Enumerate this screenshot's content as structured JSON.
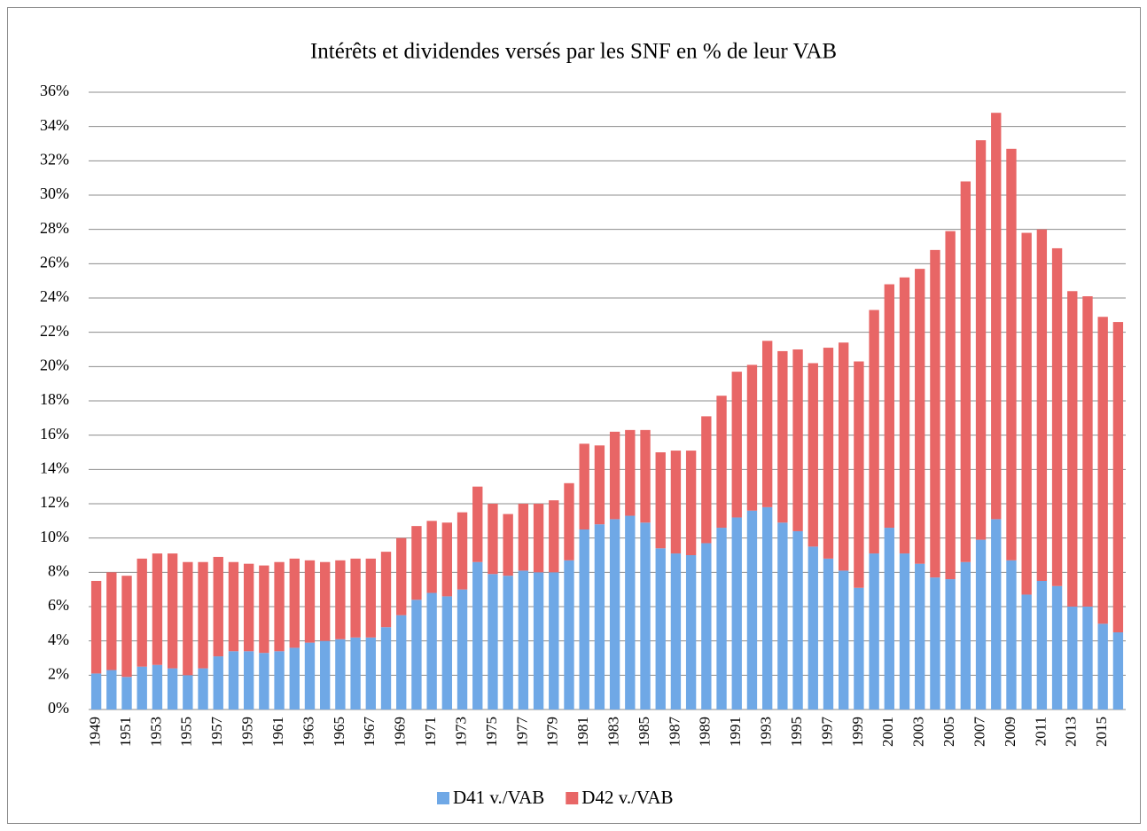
{
  "chart_data": {
    "type": "stacked-bar",
    "title": "Intérêts et dividendes versés par les SNF en % de leur VAB",
    "categories": [
      "1949",
      null,
      "1951",
      null,
      "1953",
      null,
      "1955",
      null,
      "1957",
      null,
      "1959",
      null,
      "1961",
      null,
      "1963",
      null,
      "1965",
      null,
      "1967",
      null,
      "1969",
      null,
      "1971",
      null,
      "1973",
      null,
      "1975",
      null,
      "1977",
      null,
      "1979",
      null,
      "1981",
      null,
      "1983",
      null,
      "1985",
      null,
      "1987",
      null,
      "1989",
      null,
      "1991",
      null,
      "1993",
      null,
      "1995",
      null,
      "1997",
      null,
      "1999",
      null,
      "2001",
      null,
      "2003",
      null,
      "2005",
      null,
      "2007",
      null,
      "2009",
      null,
      "2011",
      null,
      "2013",
      null,
      "2015",
      null
    ],
    "series": [
      {
        "name": "D41 v./VAB",
        "color": "#6fa8e6",
        "values": [
          2.1,
          2.3,
          1.9,
          2.5,
          2.6,
          2.4,
          2.0,
          2.4,
          3.1,
          3.4,
          3.4,
          3.3,
          3.4,
          3.6,
          3.9,
          4.0,
          4.1,
          4.2,
          4.2,
          4.8,
          5.5,
          6.4,
          6.8,
          6.6,
          7.0,
          8.6,
          7.9,
          7.8,
          8.1,
          8.0,
          8.0,
          8.7,
          10.5,
          10.8,
          11.1,
          11.3,
          10.9,
          9.4,
          9.1,
          9.0,
          9.7,
          10.6,
          11.2,
          11.6,
          11.8,
          10.9,
          10.4,
          9.5,
          8.8,
          8.1,
          7.1,
          9.1,
          10.6,
          9.1,
          8.5,
          7.7,
          7.6,
          8.6,
          9.9,
          11.1,
          8.7,
          6.7,
          7.5,
          7.2,
          6.0,
          6.0,
          5.0,
          4.5
        ]
      },
      {
        "name": "D42 v./VAB",
        "color": "#e86666",
        "values": [
          5.4,
          5.7,
          5.9,
          6.3,
          6.5,
          6.7,
          6.6,
          6.2,
          5.8,
          5.2,
          5.1,
          5.1,
          5.2,
          5.2,
          4.8,
          4.6,
          4.6,
          4.6,
          4.6,
          4.4,
          4.5,
          4.3,
          4.2,
          4.3,
          4.5,
          4.4,
          4.1,
          3.6,
          3.9,
          4.0,
          4.2,
          4.5,
          5.0,
          4.6,
          5.1,
          5.0,
          5.4,
          5.6,
          6.0,
          6.1,
          7.4,
          7.7,
          8.5,
          8.5,
          9.7,
          10.0,
          10.6,
          10.7,
          12.3,
          13.3,
          13.2,
          14.2,
          14.2,
          16.1,
          17.2,
          19.1,
          20.3,
          22.2,
          23.3,
          23.7,
          24.0,
          21.1,
          20.5,
          19.7,
          18.4,
          18.1,
          17.9,
          18.1
        ]
      }
    ],
    "ylim": [
      0,
      36
    ],
    "yticks": [
      {
        "value": 0,
        "label": "0%"
      },
      {
        "value": 2,
        "label": "2%"
      },
      {
        "value": 4,
        "label": "4%"
      },
      {
        "value": 6,
        "label": "6%"
      },
      {
        "value": 8,
        "label": "8%"
      },
      {
        "value": 10,
        "label": "10%"
      },
      {
        "value": 12,
        "label": "12%"
      },
      {
        "value": 14,
        "label": "14%"
      },
      {
        "value": 16,
        "label": "16%"
      },
      {
        "value": 18,
        "label": "18%"
      },
      {
        "value": 20,
        "label": "20%"
      },
      {
        "value": 22,
        "label": "22%"
      },
      {
        "value": 24,
        "label": "24%"
      },
      {
        "value": 26,
        "label": "26%"
      },
      {
        "value": 28,
        "label": "28%"
      },
      {
        "value": 30,
        "label": "30%"
      },
      {
        "value": 32,
        "label": "32%"
      },
      {
        "value": 34,
        "label": "34%"
      },
      {
        "value": 36,
        "label": "36%"
      }
    ],
    "grid": true,
    "legend": "bottom"
  }
}
